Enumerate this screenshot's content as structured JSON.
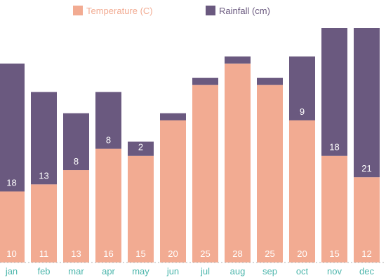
{
  "chart_data": {
    "type": "bar",
    "stacked": true,
    "categories": [
      "jan",
      "feb",
      "mar",
      "apr",
      "may",
      "jun",
      "jul",
      "aug",
      "sep",
      "oct",
      "nov",
      "dec"
    ],
    "series": [
      {
        "name": "Temperature (C)",
        "color": "#f2ab92",
        "values": [
          10,
          11,
          13,
          16,
          15,
          20,
          25,
          28,
          25,
          20,
          15,
          12
        ],
        "labels": [
          "10",
          "11",
          "13",
          "16",
          "15",
          "20",
          "25",
          "28",
          "25",
          "20",
          "15",
          "12"
        ]
      },
      {
        "name": "Rainfall (cm)",
        "color": "#6a597f",
        "values": [
          18,
          13,
          8,
          8,
          2,
          1,
          1,
          1,
          1,
          9,
          18,
          21
        ],
        "labels": [
          "18",
          "13",
          "8",
          "8",
          "2",
          "",
          "",
          "",
          "",
          "9",
          "18",
          "21"
        ]
      }
    ],
    "legend": {
      "position": "top",
      "text_color": "#f2ab92"
    },
    "axis": {
      "tick_color": "#4db6ac",
      "baseline_color": "#b0b0b0"
    },
    "grid": false,
    "ylim": [
      0,
      33
    ]
  }
}
